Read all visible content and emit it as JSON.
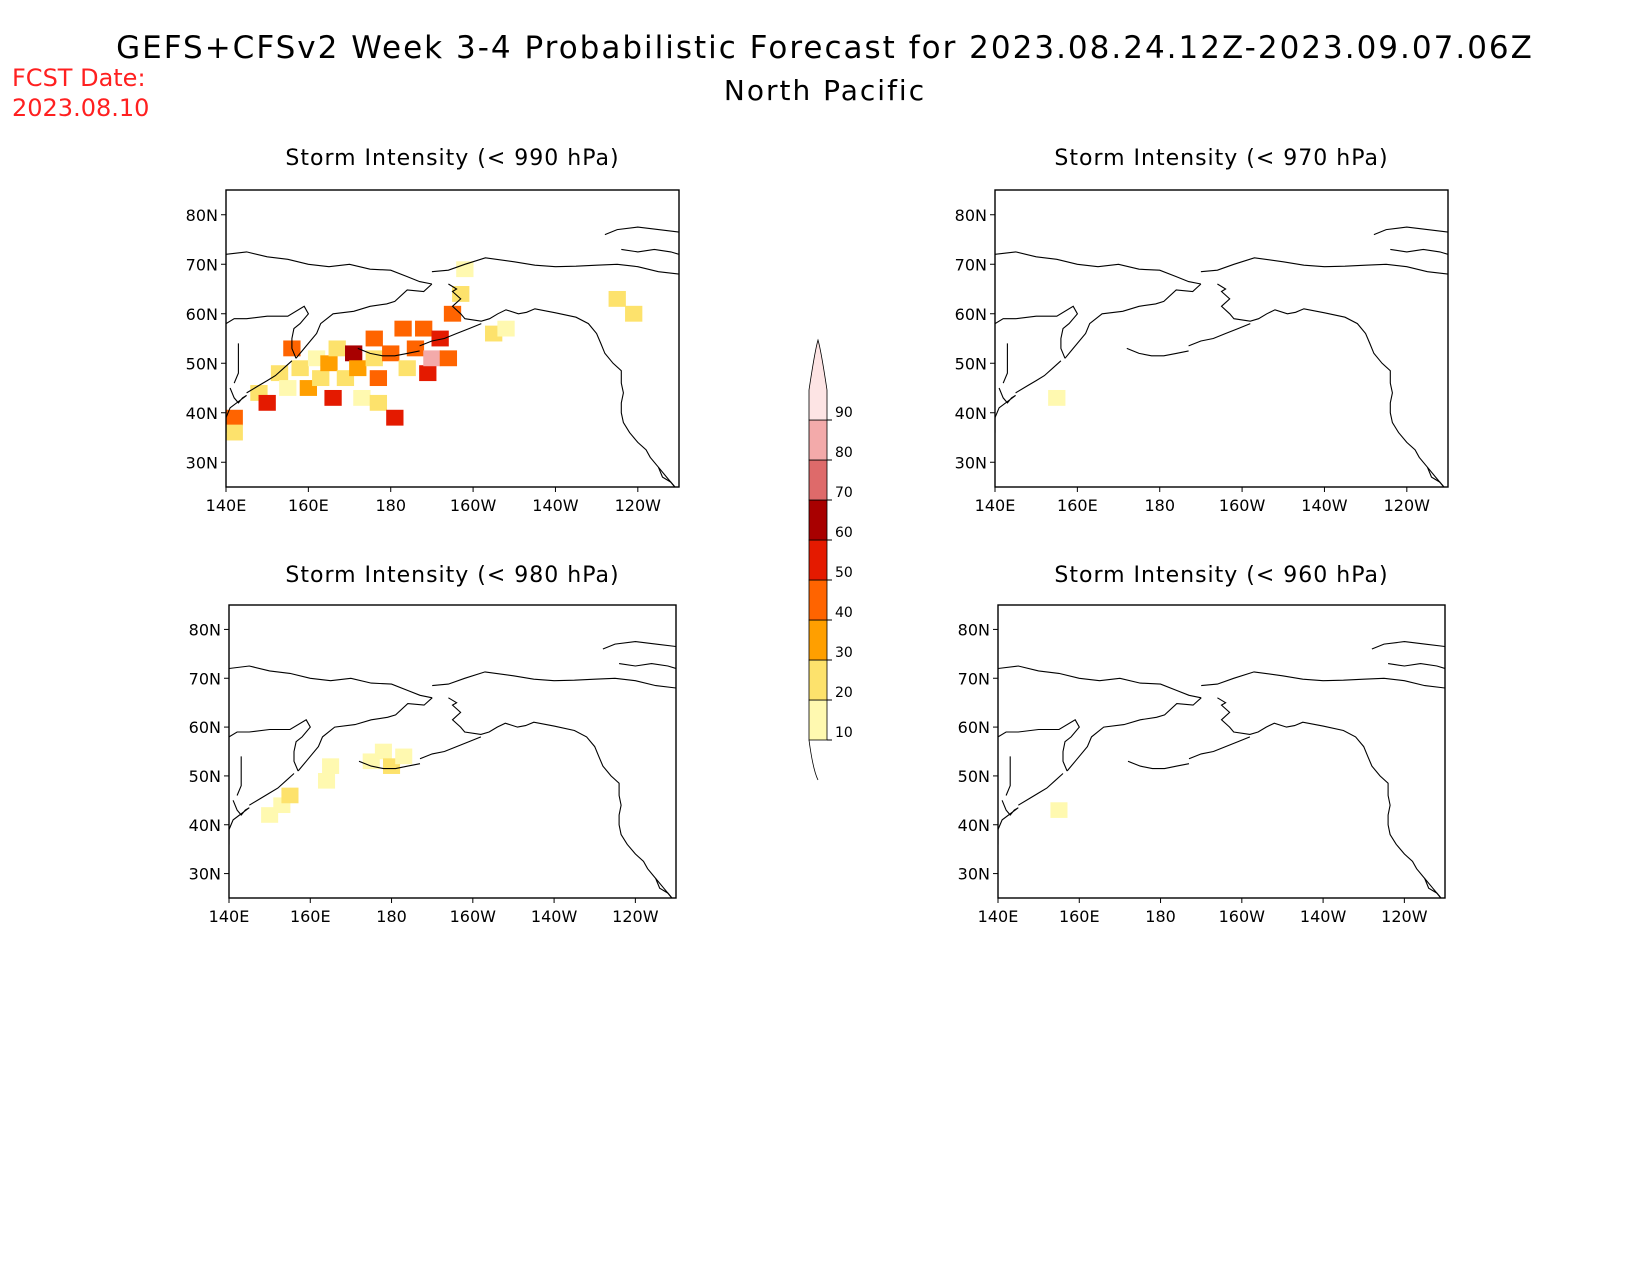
{
  "header": {
    "title": "GEFS+CFSv2 Week 3-4 Probabilistic Forecast for 2023.08.24.12Z-2023.09.07.06Z",
    "subtitle": "North Pacific",
    "fcst_label": "FCST Date:",
    "fcst_date": "2023.08.10"
  },
  "panels": [
    {
      "title": "Storm Intensity (< 990 hPa)",
      "cells": [
        {
          "lon": 142,
          "lat": 39,
          "v": 45
        },
        {
          "lon": 142,
          "lat": 36,
          "v": 25
        },
        {
          "lon": 148,
          "lat": 44,
          "v": 25
        },
        {
          "lon": 150,
          "lat": 42,
          "v": 55
        },
        {
          "lon": 153,
          "lat": 48,
          "v": 20
        },
        {
          "lon": 155,
          "lat": 45,
          "v": 15
        },
        {
          "lon": 156,
          "lat": 53,
          "v": 45
        },
        {
          "lon": 158,
          "lat": 49,
          "v": 25
        },
        {
          "lon": 160,
          "lat": 45,
          "v": 35
        },
        {
          "lon": 162,
          "lat": 51,
          "v": 15
        },
        {
          "lon": 163,
          "lat": 47,
          "v": 25
        },
        {
          "lon": 165,
          "lat": 50,
          "v": 35
        },
        {
          "lon": 166,
          "lat": 43,
          "v": 55
        },
        {
          "lon": 167,
          "lat": 53,
          "v": 20
        },
        {
          "lon": 169,
          "lat": 47,
          "v": 25
        },
        {
          "lon": 171,
          "lat": 52,
          "v": 65
        },
        {
          "lon": 172,
          "lat": 49,
          "v": 35
        },
        {
          "lon": 173,
          "lat": 43,
          "v": 15
        },
        {
          "lon": 176,
          "lat": 55,
          "v": 45
        },
        {
          "lon": 176,
          "lat": 51,
          "v": 25
        },
        {
          "lon": 177,
          "lat": 47,
          "v": 40
        },
        {
          "lon": 177,
          "lat": 42,
          "v": 20
        },
        {
          "lon": 180,
          "lat": 52,
          "v": 40
        },
        {
          "lon": 181,
          "lat": 39,
          "v": 55
        },
        {
          "lon": 183,
          "lat": 57,
          "v": 45
        },
        {
          "lon": 184,
          "lat": 49,
          "v": 25
        },
        {
          "lon": 186,
          "lat": 53,
          "v": 40
        },
        {
          "lon": 188,
          "lat": 57,
          "v": 45
        },
        {
          "lon": 189,
          "lat": 48,
          "v": 55
        },
        {
          "lon": 190,
          "lat": 51,
          "v": 80
        },
        {
          "lon": 192,
          "lat": 55,
          "v": 55
        },
        {
          "lon": 194,
          "lat": 51,
          "v": 45
        },
        {
          "lon": 195,
          "lat": 60,
          "v": 45
        },
        {
          "lon": 197,
          "lat": 64,
          "v": 25
        },
        {
          "lon": 198,
          "lat": 69,
          "v": 15
        },
        {
          "lon": 205,
          "lat": 56,
          "v": 25
        },
        {
          "lon": 208,
          "lat": 57,
          "v": 15
        },
        {
          "lon": 235,
          "lat": 63,
          "v": 20
        },
        {
          "lon": 239,
          "lat": 60,
          "v": 25
        }
      ]
    },
    {
      "title": "Storm Intensity (< 970 hPa)",
      "cells": [
        {
          "lon": 155,
          "lat": 43,
          "v": 15
        }
      ]
    },
    {
      "title": "Storm Intensity (< 980 hPa)",
      "cells": [
        {
          "lon": 150,
          "lat": 42,
          "v": 15
        },
        {
          "lon": 153,
          "lat": 44,
          "v": 15
        },
        {
          "lon": 155,
          "lat": 46,
          "v": 20
        },
        {
          "lon": 164,
          "lat": 49,
          "v": 15
        },
        {
          "lon": 165,
          "lat": 52,
          "v": 15
        },
        {
          "lon": 175,
          "lat": 53,
          "v": 15
        },
        {
          "lon": 178,
          "lat": 55,
          "v": 15
        },
        {
          "lon": 180,
          "lat": 52,
          "v": 20
        },
        {
          "lon": 183,
          "lat": 54,
          "v": 15
        }
      ]
    },
    {
      "title": "Storm Intensity (< 960 hPa)",
      "cells": [
        {
          "lon": 155,
          "lat": 43,
          "v": 15
        }
      ]
    }
  ],
  "axes": {
    "lat_labels": [
      {
        "lat": 80,
        "label": "80N"
      },
      {
        "lat": 70,
        "label": "70N"
      },
      {
        "lat": 60,
        "label": "60N"
      },
      {
        "lat": 50,
        "label": "50N"
      },
      {
        "lat": 40,
        "label": "40N"
      },
      {
        "lat": 30,
        "label": "30N"
      }
    ],
    "lon_labels": [
      {
        "lon": 140,
        "label": "140E"
      },
      {
        "lon": 160,
        "label": "160E"
      },
      {
        "lon": 180,
        "label": "180"
      },
      {
        "lon": 200,
        "label": "160W"
      },
      {
        "lon": 220,
        "label": "140W"
      },
      {
        "lon": 240,
        "label": "120W"
      }
    ],
    "lon_range": [
      140,
      250
    ],
    "lat_range": [
      25,
      85
    ]
  },
  "colorbar": {
    "ticks": [
      "10",
      "20",
      "30",
      "40",
      "50",
      "60",
      "70",
      "80",
      "90"
    ],
    "colors": [
      "#fff9b0",
      "#fde26c",
      "#ff9f00",
      "#ff6400",
      "#e41a00",
      "#a80000",
      "#de6a6a",
      "#f3aaaa",
      "#fde4e4"
    ]
  },
  "coastlines": {
    "asia": [
      [
        140,
        72
      ],
      [
        145,
        72.5
      ],
      [
        150,
        71.5
      ],
      [
        155,
        71
      ],
      [
        160,
        70
      ],
      [
        165,
        69.5
      ],
      [
        170,
        70
      ],
      [
        175,
        69
      ],
      [
        180,
        68.8
      ],
      [
        184,
        67.5
      ],
      [
        187,
        66.5
      ],
      [
        190,
        66
      ]
    ],
    "chukotka": [
      [
        190,
        66
      ],
      [
        188,
        64.5
      ],
      [
        184,
        64.8
      ],
      [
        181,
        62.5
      ],
      [
        179,
        62
      ],
      [
        175,
        61.5
      ],
      [
        171,
        60.5
      ],
      [
        166,
        60
      ],
      [
        163,
        58
      ],
      [
        162,
        56
      ],
      [
        159,
        53
      ],
      [
        157,
        51
      ]
    ],
    "kamchatka_w": [
      [
        157,
        51
      ],
      [
        156,
        53
      ],
      [
        156,
        55
      ],
      [
        156.5,
        57
      ],
      [
        158,
        58
      ],
      [
        160,
        60
      ],
      [
        159,
        61.5
      ],
      [
        155,
        59.5
      ],
      [
        150,
        59.5
      ],
      [
        145,
        59
      ],
      [
        142,
        59
      ],
      [
        140,
        58
      ]
    ],
    "alaska": [
      [
        190,
        68.5
      ],
      [
        194,
        68.8
      ],
      [
        198,
        70
      ],
      [
        203,
        71.3
      ],
      [
        210,
        70.5
      ],
      [
        215,
        69.8
      ],
      [
        220,
        69.5
      ],
      [
        225,
        69.6
      ],
      [
        230,
        69.8
      ],
      [
        235,
        70
      ],
      [
        240,
        69.5
      ],
      [
        245,
        68.5
      ],
      [
        250,
        68
      ]
    ],
    "alaska_w": [
      [
        194,
        66
      ],
      [
        196,
        65
      ],
      [
        195,
        64.5
      ],
      [
        197,
        63
      ],
      [
        195,
        61.5
      ],
      [
        197,
        60
      ],
      [
        198,
        59
      ],
      [
        202,
        58.5
      ],
      [
        204,
        59
      ],
      [
        206,
        60
      ],
      [
        208,
        60.8
      ],
      [
        211,
        60
      ],
      [
        213,
        60.3
      ],
      [
        215,
        61
      ],
      [
        220,
        60.2
      ],
      [
        225,
        59.3
      ],
      [
        228,
        58
      ],
      [
        230,
        56
      ],
      [
        231,
        54
      ],
      [
        232,
        52
      ],
      [
        234,
        50
      ],
      [
        236,
        48.5
      ],
      [
        236,
        46
      ],
      [
        236.5,
        44
      ],
      [
        236,
        42
      ],
      [
        236,
        40
      ],
      [
        236.5,
        38
      ],
      [
        238,
        36
      ],
      [
        240,
        34
      ],
      [
        242,
        32.5
      ],
      [
        243,
        31
      ],
      [
        245,
        29
      ],
      [
        247,
        27
      ],
      [
        249,
        25
      ]
    ],
    "alaska_pen": [
      [
        202,
        58
      ],
      [
        199,
        57
      ],
      [
        196,
        56
      ],
      [
        193,
        55
      ],
      [
        190,
        54.5
      ],
      [
        187,
        53.5
      ]
    ],
    "japan": [
      [
        141,
        45
      ],
      [
        142,
        43
      ],
      [
        143,
        42
      ],
      [
        144,
        43
      ],
      [
        145,
        43.5
      ],
      [
        141,
        41
      ],
      [
        140,
        39
      ],
      [
        140,
        36
      ],
      [
        139,
        35
      ],
      [
        138,
        34
      ]
    ],
    "kurils": [
      [
        145,
        44
      ],
      [
        148,
        45.5
      ],
      [
        150,
        46.5
      ],
      [
        152,
        47.5
      ],
      [
        154,
        49
      ],
      [
        156,
        50.5
      ]
    ],
    "sakhalin": [
      [
        142,
        46
      ],
      [
        143,
        48
      ],
      [
        143,
        50
      ],
      [
        143,
        52
      ],
      [
        143,
        54
      ]
    ],
    "baja": [
      [
        245,
        29
      ],
      [
        246,
        27
      ],
      [
        248,
        26
      ],
      [
        249,
        25
      ]
    ],
    "arctic_is": [
      [
        232,
        76
      ],
      [
        235,
        77
      ],
      [
        240,
        77.5
      ],
      [
        245,
        77
      ],
      [
        250,
        76.5
      ]
    ],
    "arctic_is2": [
      [
        236,
        73
      ],
      [
        240,
        72.5
      ],
      [
        244,
        73
      ],
      [
        248,
        72.5
      ],
      [
        250,
        72
      ]
    ],
    "aleutians": [
      [
        172,
        53
      ],
      [
        175,
        52
      ],
      [
        178,
        51.5
      ],
      [
        181,
        51.5
      ],
      [
        184,
        52
      ],
      [
        187,
        52.5
      ]
    ]
  }
}
